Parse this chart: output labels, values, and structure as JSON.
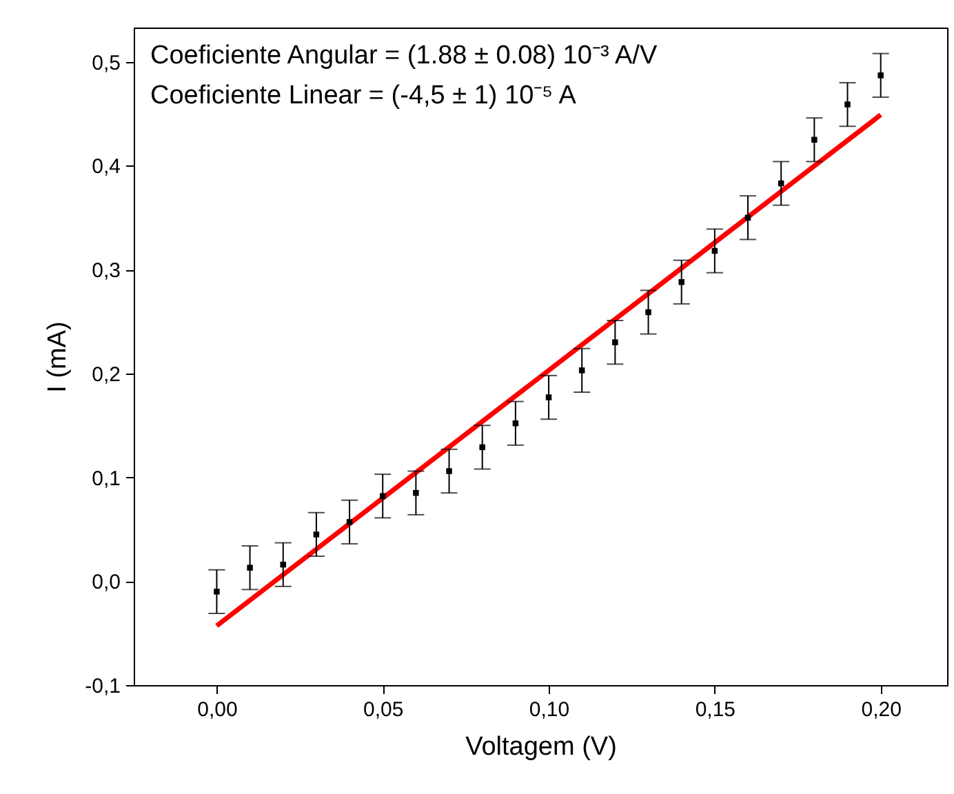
{
  "chart_data": {
    "type": "scatter",
    "xlabel": "Voltagem (V)",
    "ylabel": "I (mA)",
    "annotations": [
      "Coeficiente Angular = (1.88 ± 0.08) 10⁻³  A/V",
      "Coeficiente Linear = (-4,5 ± 1) 10⁻⁵ A"
    ],
    "xlim": [
      -0.025,
      0.22
    ],
    "ylim": [
      -0.1,
      0.533
    ],
    "xticks": [
      {
        "value": 0,
        "label": "0,00"
      },
      {
        "value": 0.05,
        "label": "0,05"
      },
      {
        "value": 0.1,
        "label": "0,10"
      },
      {
        "value": 0.15,
        "label": "0,15"
      },
      {
        "value": 0.2,
        "label": "0,20"
      }
    ],
    "yticks": [
      {
        "value": -0.1,
        "label": "-0,1"
      },
      {
        "value": 0,
        "label": "0,0"
      },
      {
        "value": 0.1,
        "label": "0,1"
      },
      {
        "value": 0.2,
        "label": "0,2"
      },
      {
        "value": 0.3,
        "label": "0,3"
      },
      {
        "value": 0.4,
        "label": "0,4"
      },
      {
        "value": 0.5,
        "label": "0,5"
      }
    ],
    "grid": false,
    "series": [
      {
        "color": "#000000",
        "marker": "square",
        "x": [
          0,
          0.01,
          0.02,
          0.03,
          0.04,
          0.05,
          0.06,
          0.07,
          0.08,
          0.09,
          0.1,
          0.11,
          0.12,
          0.13,
          0.14,
          0.15,
          0.16,
          0.17,
          0.18,
          0.19,
          0.2
        ],
        "values": [
          -0.01,
          0.013,
          0.016,
          0.045,
          0.057,
          0.082,
          0.085,
          0.106,
          0.129,
          0.152,
          0.177,
          0.203,
          0.23,
          0.259,
          0.288,
          0.318,
          0.35,
          0.383,
          0.425,
          0.459,
          0.487
        ],
        "errors": [
          0.021,
          0.021,
          0.021,
          0.021,
          0.021,
          0.021,
          0.021,
          0.021,
          0.021,
          0.021,
          0.021,
          0.021,
          0.021,
          0.021,
          0.021,
          0.021,
          0.021,
          0.021,
          0.021,
          0.021,
          0.021
        ]
      },
      {
        "type": "line",
        "color": "#ff0000",
        "line_style": "solid",
        "x": [
          0,
          0.2
        ],
        "values": [
          -0.043,
          0.449
        ]
      }
    ]
  }
}
